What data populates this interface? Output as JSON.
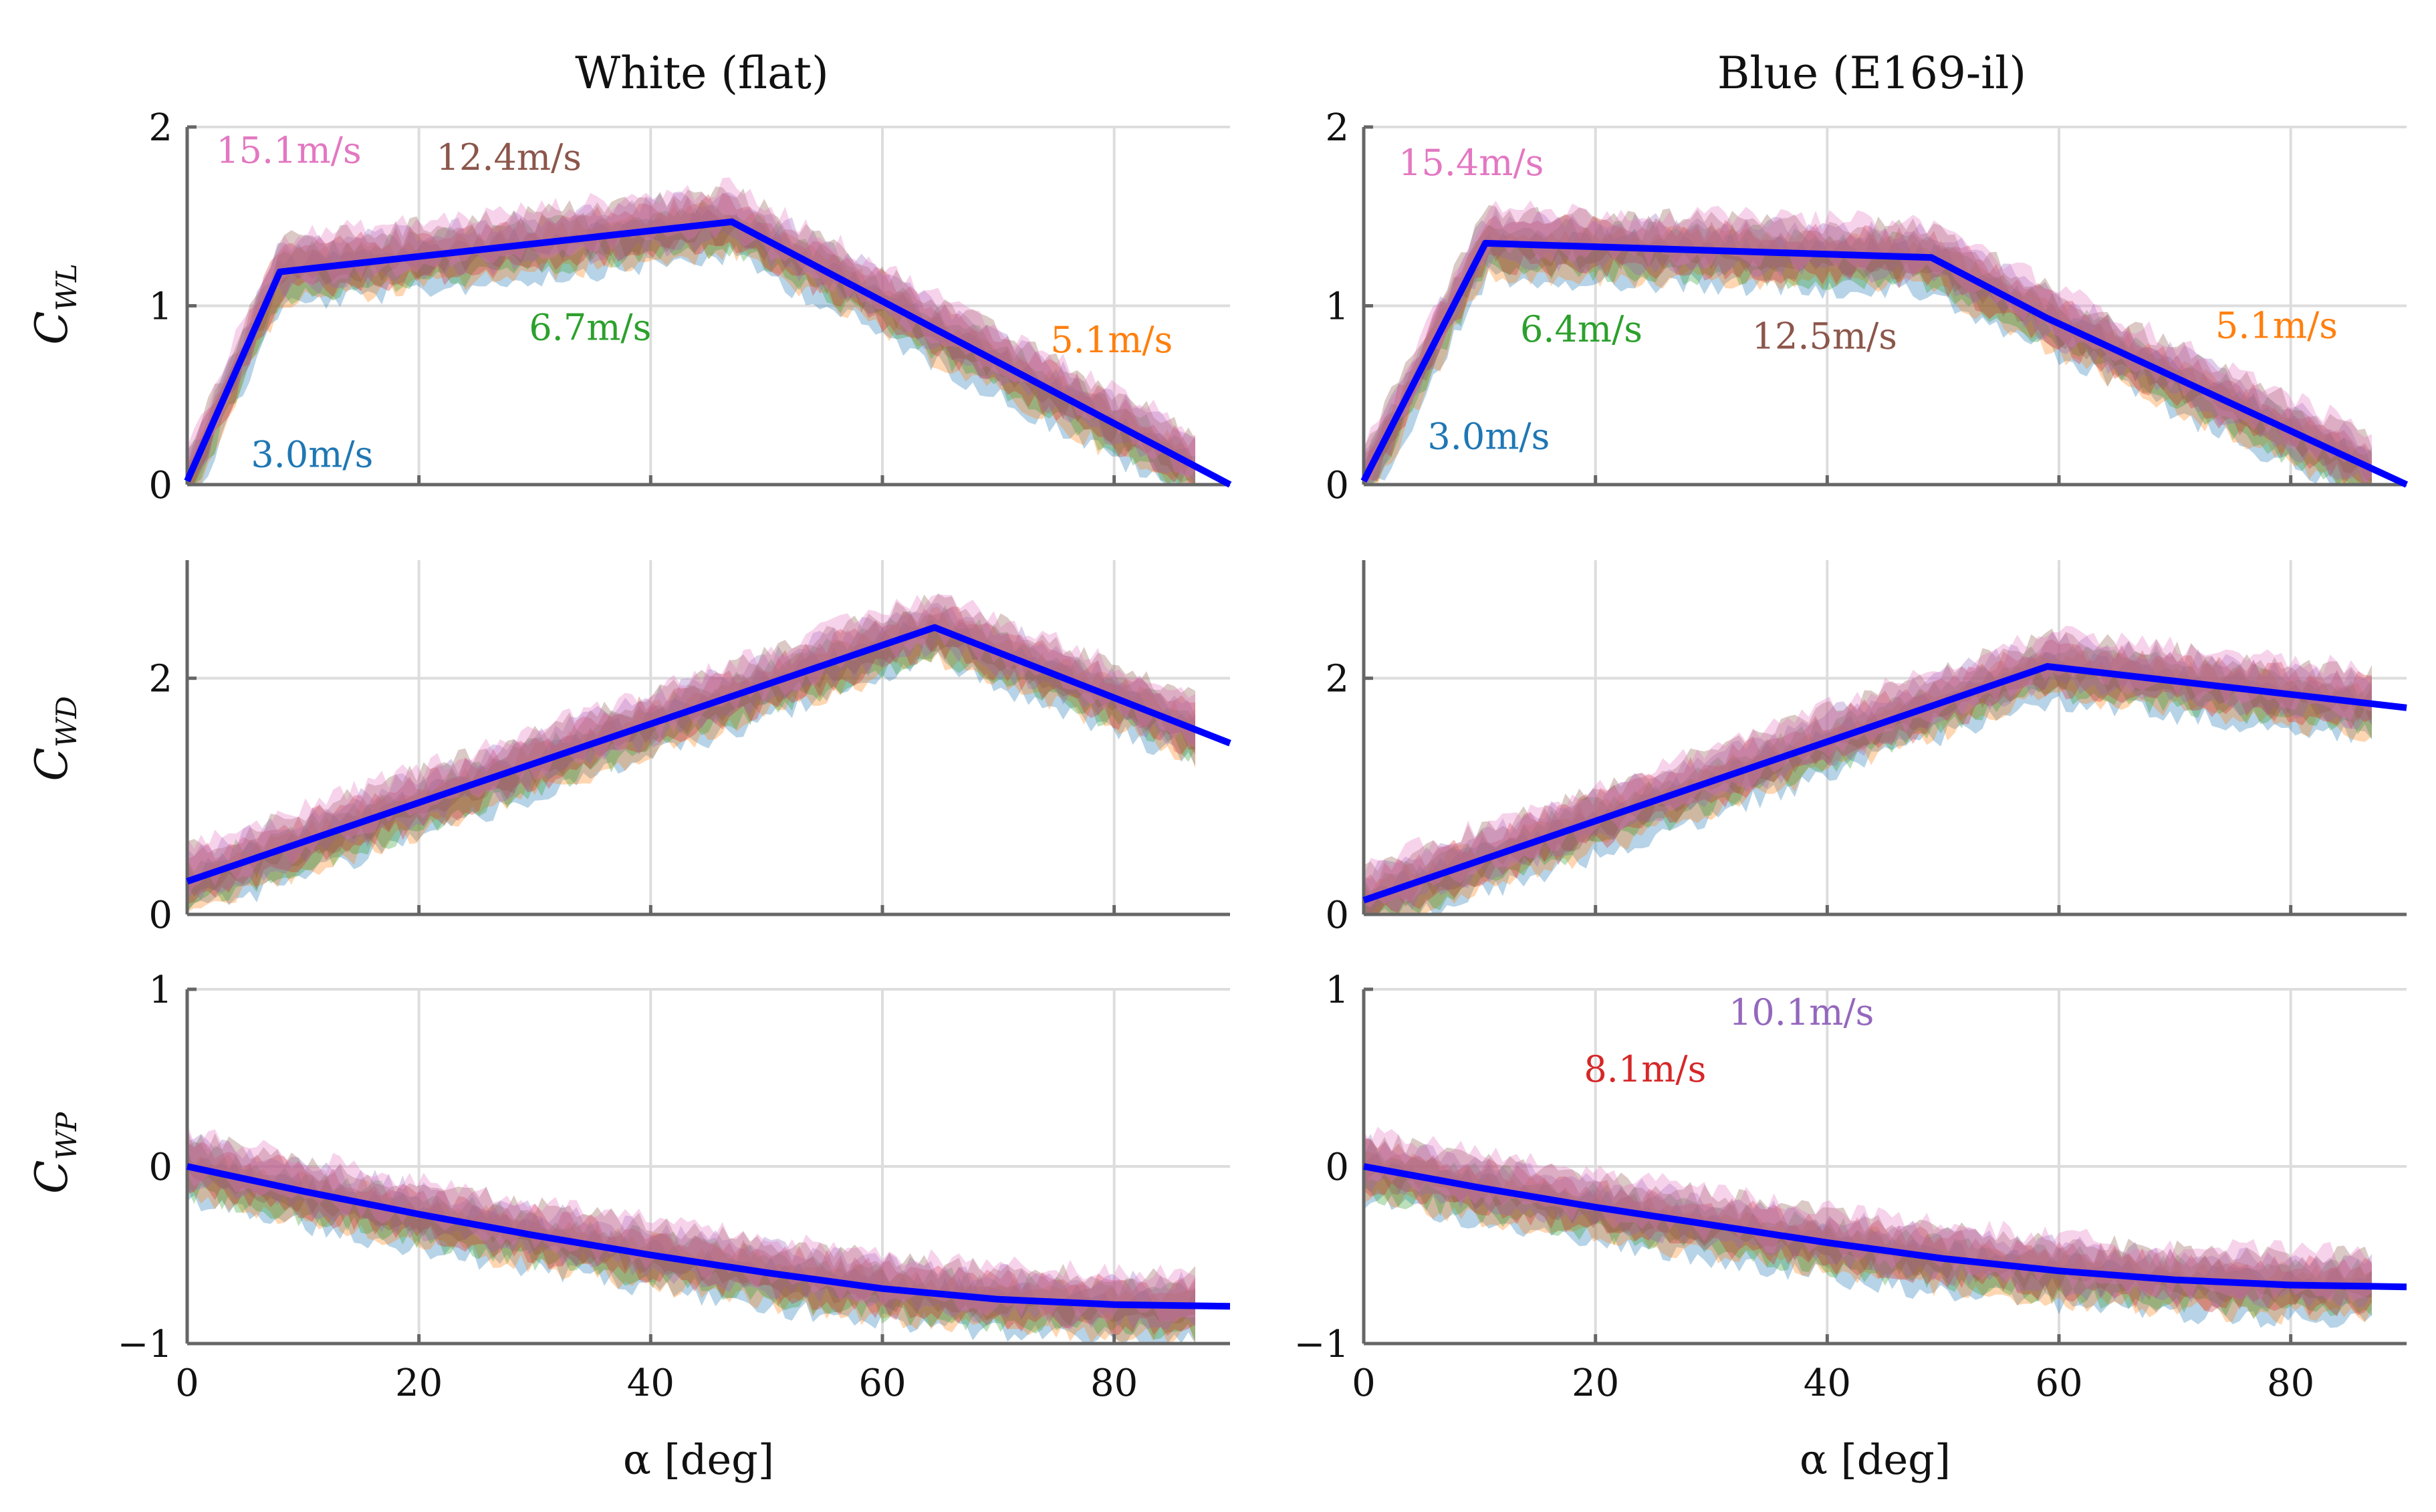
{
  "columns": [
    "White (flat)",
    "Blue (E169-il)"
  ],
  "xlabel": "α [deg]",
  "xlim": [
    0,
    90
  ],
  "xticks": [
    0,
    20,
    40,
    60,
    80
  ],
  "rows": [
    {
      "key": "CWL",
      "ylabel_main": "C",
      "ylabel_sub": "WL",
      "ylim": [
        0,
        2
      ],
      "yticks": [
        0,
        1,
        2
      ]
    },
    {
      "key": "CWD",
      "ylabel_main": "C",
      "ylabel_sub": "WD",
      "ylim": [
        0,
        3
      ],
      "yticks": [
        0,
        2
      ]
    },
    {
      "key": "CWP",
      "ylabel_main": "C",
      "ylabel_sub": "WP",
      "ylim": [
        -1,
        1
      ],
      "yticks": [
        -1,
        0,
        1
      ]
    }
  ],
  "colors": {
    "fit": "#0000ff",
    "c3_0": "#1f77b4",
    "c5_1": "#ff7f0e",
    "c6_x": "#2ca02c",
    "c8_1": "#d62728",
    "c10_1": "#9467bd",
    "c12_x": "#8c564b",
    "c15_x": "#e377c2"
  },
  "chart_data": [
    {
      "type": "line",
      "column": "White (flat)",
      "row": "CWL",
      "fit": {
        "x": [
          0,
          8,
          47,
          90
        ],
        "y": [
          0.02,
          1.19,
          1.47,
          0.0
        ]
      },
      "annotations": [
        {
          "text": "15.1m/s",
          "x": 2.5,
          "y": 1.8,
          "color": "#e377c2"
        },
        {
          "text": "12.4m/s",
          "x": 21.5,
          "y": 1.76,
          "color": "#8c564b"
        },
        {
          "text": "6.7m/s",
          "x": 29.5,
          "y": 0.81,
          "color": "#2ca02c"
        },
        {
          "text": "5.1m/s",
          "x": 74.5,
          "y": 0.74,
          "color": "#ff7f0e"
        },
        {
          "text": "3.0m/s",
          "x": 5.5,
          "y": 0.1,
          "color": "#1f77b4"
        }
      ]
    },
    {
      "type": "line",
      "column": "Blue (E169-il)",
      "row": "CWL",
      "fit": {
        "x": [
          0,
          10.5,
          49,
          59,
          90
        ],
        "y": [
          0.02,
          1.35,
          1.27,
          0.93,
          0.0
        ]
      },
      "annotations": [
        {
          "text": "15.4m/s",
          "x": 3,
          "y": 1.73,
          "color": "#e377c2"
        },
        {
          "text": "6.4m/s",
          "x": 13.5,
          "y": 0.8,
          "color": "#2ca02c"
        },
        {
          "text": "12.5m/s",
          "x": 33.5,
          "y": 0.76,
          "color": "#8c564b"
        },
        {
          "text": "5.1m/s",
          "x": 73.5,
          "y": 0.82,
          "color": "#ff7f0e"
        },
        {
          "text": "3.0m/s",
          "x": 5.5,
          "y": 0.2,
          "color": "#1f77b4"
        }
      ]
    },
    {
      "type": "line",
      "column": "White (flat)",
      "row": "CWD",
      "fit": {
        "x": [
          0,
          64.5,
          90
        ],
        "y": [
          0.28,
          2.43,
          1.45
        ]
      },
      "annotations": []
    },
    {
      "type": "line",
      "column": "Blue (E169-il)",
      "row": "CWD",
      "fit": {
        "x": [
          0,
          59,
          90
        ],
        "y": [
          0.12,
          2.1,
          1.75
        ]
      },
      "annotations": []
    },
    {
      "type": "line",
      "column": "White (flat)",
      "row": "CWP",
      "fit": {
        "x": [
          0,
          10,
          20,
          30,
          40,
          50,
          60,
          70,
          80,
          90
        ],
        "y": [
          0.0,
          -0.14,
          -0.27,
          -0.39,
          -0.5,
          -0.6,
          -0.69,
          -0.75,
          -0.78,
          -0.79
        ]
      },
      "annotations": []
    },
    {
      "type": "line",
      "column": "Blue (E169-il)",
      "row": "CWP",
      "fit": {
        "x": [
          0,
          10,
          20,
          30,
          40,
          50,
          60,
          70,
          80,
          90
        ],
        "y": [
          0.0,
          -0.12,
          -0.23,
          -0.33,
          -0.43,
          -0.52,
          -0.59,
          -0.64,
          -0.67,
          -0.68
        ]
      },
      "annotations": [
        {
          "text": "10.1m/s",
          "x": 31.5,
          "y": 0.8,
          "color": "#9467bd"
        },
        {
          "text": "8.1m/s",
          "x": 19,
          "y": 0.48,
          "color": "#d62728"
        }
      ]
    }
  ]
}
